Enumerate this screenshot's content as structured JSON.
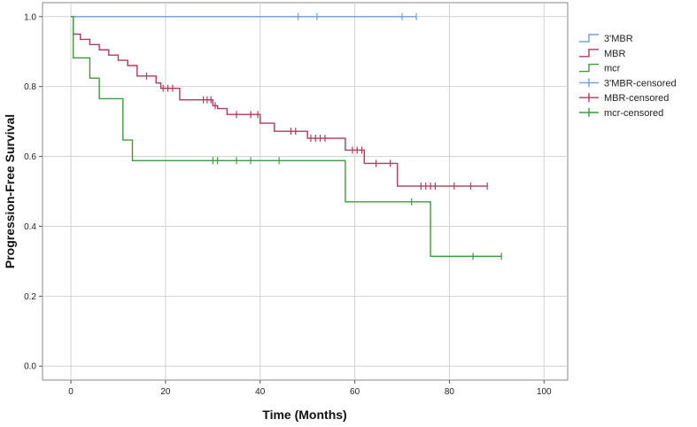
{
  "chart_data": {
    "type": "line",
    "title": "",
    "xlabel": "Time (Months)",
    "ylabel": "Progression-Free Survival",
    "xlim": [
      -6,
      105
    ],
    "ylim": [
      -0.04,
      1.04
    ],
    "xticks": [
      0,
      20,
      40,
      60,
      80,
      100
    ],
    "yticks": [
      0.0,
      0.2,
      0.4,
      0.6,
      0.8,
      1.0
    ],
    "ytick_labels": [
      "0.0",
      "0.2",
      "0.4",
      "0.6",
      "0.8",
      "1.0"
    ],
    "grid": true,
    "legend_position": "top-right, outside plot",
    "series": [
      {
        "name": "3'MBR",
        "censored_name": "3'MBR-censored",
        "color": "#6f9fd8",
        "steps": [
          [
            0,
            1.0
          ],
          [
            73,
            1.0
          ]
        ],
        "censored": [
          48,
          52,
          70,
          73
        ]
      },
      {
        "name": "MBR",
        "censored_name": "MBR-censored",
        "color": "#b03a5b",
        "steps": [
          [
            0,
            1.0
          ],
          [
            0.5,
            0.95
          ],
          [
            2,
            0.935
          ],
          [
            4,
            0.92
          ],
          [
            6,
            0.905
          ],
          [
            8,
            0.89
          ],
          [
            10,
            0.875
          ],
          [
            12,
            0.86
          ],
          [
            14,
            0.83
          ],
          [
            18,
            0.81
          ],
          [
            19,
            0.795
          ],
          [
            23,
            0.762
          ],
          [
            30,
            0.745
          ],
          [
            31,
            0.737
          ],
          [
            33,
            0.72
          ],
          [
            40,
            0.695
          ],
          [
            43,
            0.672
          ],
          [
            50,
            0.652
          ],
          [
            58,
            0.618
          ],
          [
            62,
            0.58
          ],
          [
            69,
            0.515
          ],
          [
            88,
            0.515
          ]
        ],
        "censored": [
          16,
          19.5,
          20.5,
          21.5,
          28,
          28.8,
          29.6,
          30.5,
          35,
          38,
          39.5,
          46.5,
          47.5,
          50.7,
          51.7,
          52.7,
          53.7,
          59.5,
          60.5,
          61.5,
          64.5,
          67.5,
          74,
          75,
          76,
          77,
          81,
          84.5,
          88
        ]
      },
      {
        "name": "mcr",
        "censored_name": "mcr-censored",
        "color": "#3f9a3f",
        "steps": [
          [
            0,
            1.0
          ],
          [
            0.5,
            0.882
          ],
          [
            4,
            0.824
          ],
          [
            6,
            0.765
          ],
          [
            11,
            0.647
          ],
          [
            13,
            0.588
          ],
          [
            58,
            0.47
          ],
          [
            76,
            0.314
          ],
          [
            91,
            0.314
          ]
        ],
        "censored": [
          30,
          31,
          35,
          38,
          44,
          72,
          85,
          91
        ]
      }
    ]
  }
}
